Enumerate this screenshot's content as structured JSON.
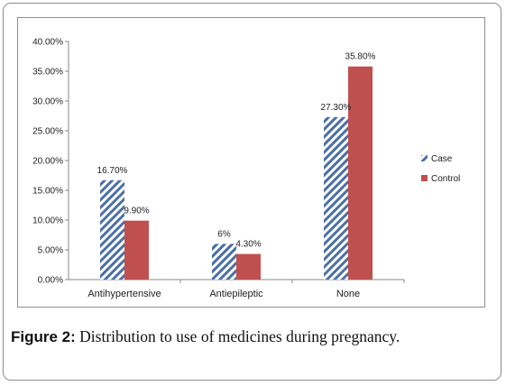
{
  "caption": {
    "lead": "Figure 2:",
    "text": " Distribution to use of medicines during pregnancy."
  },
  "chart_data": {
    "type": "bar",
    "categories": [
      "Antihypertensive",
      "Antiepileptic",
      "None"
    ],
    "series": [
      {
        "name": "Case",
        "values": [
          16.7,
          6,
          27.3
        ],
        "labels": [
          "16.70%",
          "6%",
          "27.30%"
        ],
        "color": "#4a6fa5",
        "pattern": "diagonal-hatch"
      },
      {
        "name": "Control",
        "values": [
          9.9,
          4.3,
          35.8
        ],
        "labels": [
          "9.90%",
          "4.30%",
          "35.80%"
        ],
        "color": "#c0504d",
        "pattern": "solid"
      }
    ],
    "y_ticks": [
      "0.00%",
      "5.00%",
      "10.00%",
      "15.00%",
      "20.00%",
      "25.00%",
      "30.00%",
      "35.00%",
      "40.00%"
    ],
    "ylim": [
      0,
      40
    ],
    "grid": false,
    "legend_position": "right"
  }
}
